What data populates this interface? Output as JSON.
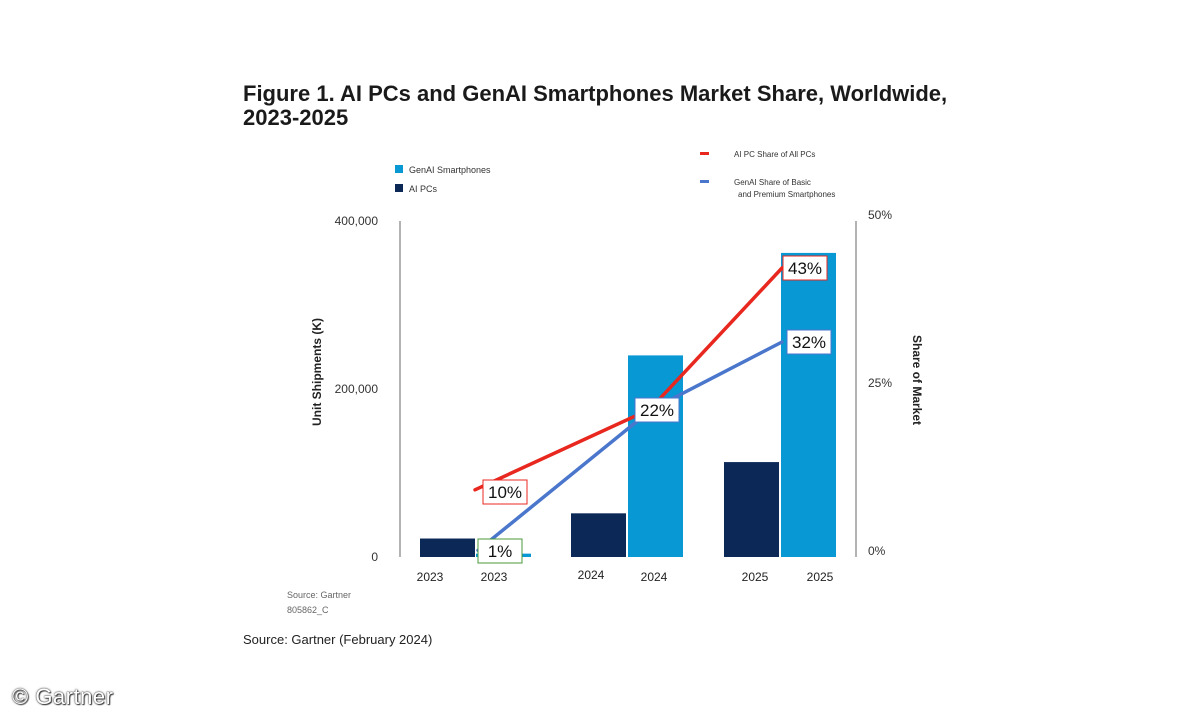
{
  "chart_data": {
    "type": "bar",
    "title": "Figure 1. AI PCs and GenAI Smartphones Market Share, Worldwide, 2023-2025",
    "ylabel": "Unit Shipments (K)",
    "y2label": "Share of Market",
    "ylim": [
      0,
      400000
    ],
    "y2lim": [
      0,
      50
    ],
    "yticks": [
      "400,000",
      "200,000",
      "0"
    ],
    "y2ticks": [
      "50%",
      "25%",
      "0%"
    ],
    "groups": [
      "2023",
      "2024",
      "2025"
    ],
    "series": [
      {
        "name": "AI PCs",
        "color": "#0b2856",
        "tick_labels": [
          "2023",
          "2024",
          "2025"
        ],
        "values": [
          22000,
          52000,
          113000
        ]
      },
      {
        "name": "GenAI Smartphones",
        "color": "#0898d4",
        "tick_labels": [
          "2023",
          "2024",
          "2025"
        ],
        "values": [
          4000,
          240000,
          362000
        ]
      }
    ],
    "lines": [
      {
        "name": "AI PC Share of All PCs",
        "color": "#e8271f",
        "values": [
          10,
          22,
          43
        ],
        "labels": [
          "10%",
          "22%",
          "43%"
        ]
      },
      {
        "name": "GenAI Share of Basic and Premium Smartphones",
        "color": "#4a76cc",
        "values": [
          1,
          22,
          32
        ],
        "labels": [
          "1%",
          "22%",
          "32%"
        ]
      }
    ],
    "legend": {
      "bars": [
        "GenAI Smartphones",
        "AI PCs"
      ],
      "lines_line1": [
        "AI PC Share of All PCs",
        "GenAI Share of Basic"
      ],
      "lines_line2": [
        "",
        "and Premium Smartphones"
      ]
    },
    "inner_source": "Source: Gartner",
    "figure_id": "805862_C"
  },
  "source_caption": "Source: Gartner (February 2024)",
  "watermark": "© Gartner"
}
